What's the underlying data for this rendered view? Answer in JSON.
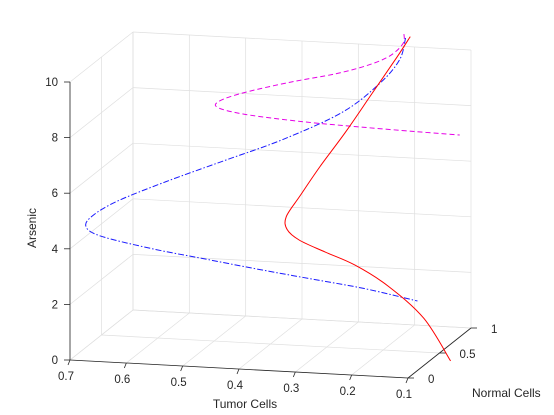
{
  "chart_data": {
    "type": "line3d",
    "title": "",
    "xlabel": "Tumor Cells",
    "ylabel": "Normal Cells",
    "zlabel": "Arsenic",
    "xlim": [
      0.1,
      0.7
    ],
    "ylim": [
      0,
      1
    ],
    "zlim": [
      0,
      10
    ],
    "x_ticks": [
      "0.7",
      "0.6",
      "0.5",
      "0.4",
      "0.3",
      "0.2",
      "0.1"
    ],
    "x_tick_values": [
      0.7,
      0.6,
      0.5,
      0.4,
      0.3,
      0.2,
      0.1
    ],
    "y_ticks": [
      "0",
      "0.5",
      "1"
    ],
    "y_tick_values": [
      0,
      0.5,
      1
    ],
    "z_ticks": [
      "0",
      "2",
      "4",
      "6",
      "8",
      "10"
    ],
    "z_tick_values": [
      0,
      2,
      4,
      6,
      8,
      10
    ],
    "grid": true,
    "colors": {
      "axis": "#262626",
      "grid": "#dfdfdf"
    },
    "series": [
      {
        "style": "dashed",
        "color": "#e600e6",
        "x": [
          0.21,
          0.215,
          0.24,
          0.28,
          0.34,
          0.42,
          0.5,
          0.545,
          0.55,
          0.5,
          0.4,
          0.3,
          0.2,
          0.12
        ],
        "y": [
          0.92,
          0.95,
          0.97,
          0.98,
          0.99,
          1.0,
          1.0,
          1.0,
          1.0,
          1.0,
          1.0,
          1.0,
          1.0,
          1.0
        ],
        "z": [
          10.6,
          10.2,
          9.7,
          9.3,
          8.9,
          8.5,
          8.05,
          7.7,
          7.45,
          7.25,
          7.1,
          7.02,
          6.96,
          6.92
        ]
      },
      {
        "style": "dashdot",
        "color": "#1a1aff",
        "x": [
          0.205,
          0.21,
          0.24,
          0.3,
          0.4,
          0.5,
          0.6,
          0.68,
          0.72,
          0.73,
          0.7,
          0.6,
          0.5,
          0.4,
          0.3,
          0.2,
          0.1
        ],
        "y": [
          0.9,
          0.85,
          0.8,
          0.75,
          0.7,
          0.66,
          0.62,
          0.58,
          0.55,
          0.52,
          0.48,
          0.42,
          0.36,
          0.3,
          0.25,
          0.2,
          0.15
        ],
        "z": [
          10.5,
          9.8,
          9.0,
          8.0,
          7.0,
          6.2,
          5.4,
          4.7,
          4.2,
          3.85,
          3.6,
          3.35,
          3.2,
          3.05,
          2.9,
          2.75,
          2.5
        ]
      },
      {
        "style": "solid",
        "color": "#ff0000",
        "x": [
          0.2,
          0.22,
          0.26,
          0.3,
          0.34,
          0.37,
          0.39,
          0.385,
          0.36,
          0.31,
          0.25,
          0.18,
          0.1,
          0.03
        ],
        "y": [
          0.93,
          0.9,
          0.85,
          0.8,
          0.75,
          0.7,
          0.66,
          0.63,
          0.6,
          0.56,
          0.5,
          0.4,
          0.25,
          0.05
        ],
        "z": [
          10.5,
          9.8,
          8.5,
          7.2,
          6.0,
          5.0,
          4.3,
          3.9,
          3.6,
          3.3,
          3.0,
          2.5,
          1.7,
          0.6
        ]
      }
    ]
  }
}
